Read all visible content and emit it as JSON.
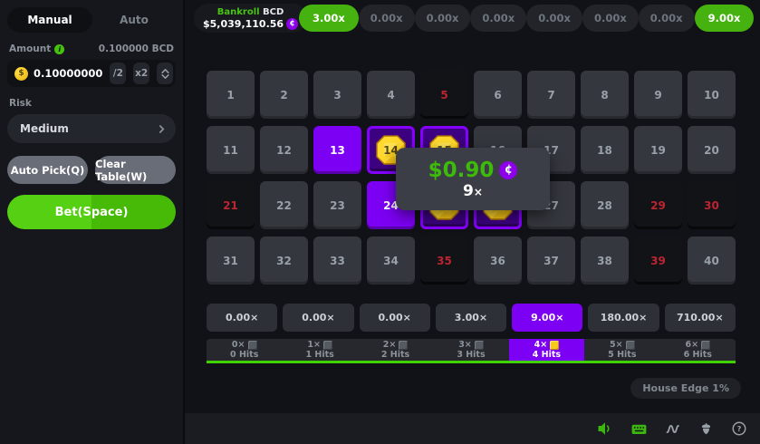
{
  "sidebar": {
    "mode_manual": "Manual",
    "mode_auto": "Auto",
    "amount_label": "Amount",
    "amount_converted": "0.100000 BCD",
    "amount_value": "0.10000000",
    "half_label": "/2",
    "double_label": "x2",
    "risk_label": "Risk",
    "risk_value": "Medium",
    "auto_pick_label": "Auto Pick(Q)",
    "clear_table_label": "Clear Table(W)",
    "bet_label": "Bet(Space)"
  },
  "topbar": {
    "bankroll": {
      "label": "Bankroll",
      "currency": "BCD",
      "value": "$5,039,110.56",
      "coin_symbol": "¢"
    },
    "history": [
      {
        "label": "3.00x",
        "win": true
      },
      {
        "label": "0.00x",
        "win": false
      },
      {
        "label": "0.00x",
        "win": false
      },
      {
        "label": "0.00x",
        "win": false
      },
      {
        "label": "0.00x",
        "win": false
      },
      {
        "label": "0.00x",
        "win": false
      },
      {
        "label": "0.00x",
        "win": false
      },
      {
        "label": "9.00x",
        "win": true
      }
    ]
  },
  "board": {
    "tile_count": 40,
    "picked_no_hit": [
      13,
      24
    ],
    "picked_hit": [
      14,
      15,
      25,
      26
    ],
    "drawn_miss": [
      5,
      21,
      29,
      30,
      35,
      39
    ]
  },
  "tooltip": {
    "amount": "$0.90",
    "coin_symbol": "¢",
    "multiplier": "9",
    "times_symbol": "×"
  },
  "payouts": [
    {
      "label": "0.00×",
      "active": false
    },
    {
      "label": "0.00×",
      "active": false
    },
    {
      "label": "0.00×",
      "active": false
    },
    {
      "label": "3.00×",
      "active": false
    },
    {
      "label": "9.00×",
      "active": true
    },
    {
      "label": "180.00×",
      "active": false
    },
    {
      "label": "710.00×",
      "active": false
    }
  ],
  "hits_row": [
    {
      "mult": "0×",
      "label": "0 Hits",
      "active": false
    },
    {
      "mult": "1×",
      "label": "1 Hits",
      "active": false
    },
    {
      "mult": "2×",
      "label": "2 Hits",
      "active": false
    },
    {
      "mult": "3×",
      "label": "3 Hits",
      "active": false
    },
    {
      "mult": "4×",
      "label": "4 Hits",
      "active": true
    },
    {
      "mult": "5×",
      "label": "5 Hits",
      "active": false
    },
    {
      "mult": "6×",
      "label": "6 Hits",
      "active": false
    }
  ],
  "house_edge_label": "House Edge 1%",
  "footer_icons": [
    "sound-icon",
    "keyboard-icon",
    "live-stats-icon",
    "seed-icon",
    "help-icon"
  ],
  "colors": {
    "accent_green": "#45b20f",
    "accent_purple": "#7c00f3",
    "win_text_green": "#3eba0b",
    "miss_red": "#bb2430",
    "gem_gold": "#f4c316"
  }
}
